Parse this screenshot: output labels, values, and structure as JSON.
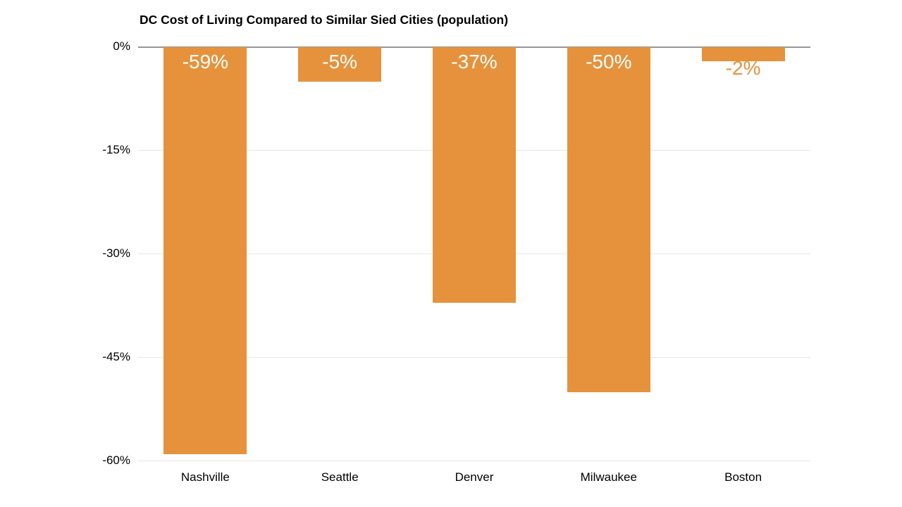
{
  "chart_data": {
    "type": "bar",
    "title": "DC Cost of Living Compared to Similar Sied Cities (population)",
    "categories": [
      "Nashville",
      "Seattle",
      "Denver",
      "Milwaukee",
      "Boston"
    ],
    "values": [
      -59,
      -5,
      -37,
      -50,
      -2
    ],
    "data_labels": [
      "-59%",
      "-5%",
      "-37%",
      "-50%",
      "-2%"
    ],
    "y_tick_labels": [
      "0%",
      "-15%",
      "-30%",
      "-45%",
      "-60%"
    ],
    "y_tick_values": [
      0,
      -15,
      -30,
      -45,
      -60
    ],
    "ylim": [
      -60,
      0
    ],
    "xlabel": "",
    "ylabel": "",
    "grid": true,
    "legend_position": "none",
    "colors": {
      "bar": "#E6923C",
      "label_inside_bar": "#FFFFFF",
      "label_outside_bar": "#E6923C",
      "gridline": "#E6E6E6",
      "zero_line": "#979797",
      "title_text": "#000000",
      "axis_text": "#000000",
      "background": "#FFFFFF"
    }
  }
}
